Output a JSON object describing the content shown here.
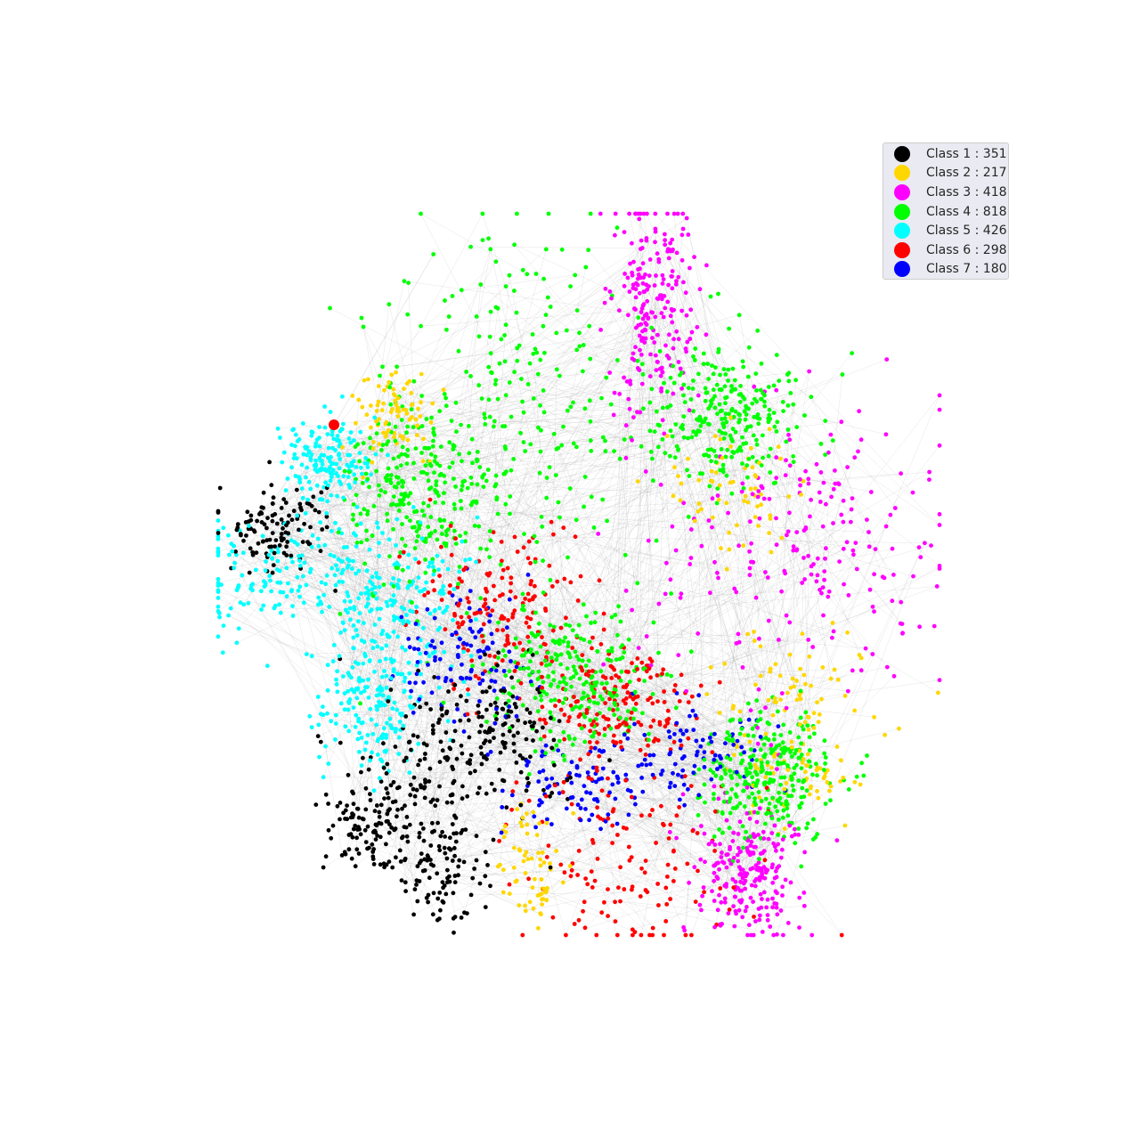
{
  "chart_data": {
    "type": "scatter",
    "subtype": "network-graph",
    "title": "",
    "xlabel": "",
    "ylabel": "",
    "axes_visible": false,
    "grid": false,
    "legend_placement": "top-right",
    "edge_color": "#808080",
    "series": [
      {
        "name": "Class 1 : 351",
        "label": "Class 1",
        "count": 351,
        "color": "#000000"
      },
      {
        "name": "Class 2 : 217",
        "label": "Class 2",
        "count": 217,
        "color": "#ffd700"
      },
      {
        "name": "Class 3 : 418",
        "label": "Class 3",
        "count": 418,
        "color": "#ff00ff"
      },
      {
        "name": "Class 4 : 818",
        "label": "Class 4",
        "count": 818,
        "color": "#00ff00"
      },
      {
        "name": "Class 5 : 426",
        "label": "Class 5",
        "count": 426,
        "color": "#00ffff"
      },
      {
        "name": "Class 6 : 298",
        "label": "Class 6",
        "count": 298,
        "color": "#ff0000"
      },
      {
        "name": "Class 7 : 180",
        "label": "Class 7",
        "count": 180,
        "color": "#0000ff"
      }
    ]
  }
}
